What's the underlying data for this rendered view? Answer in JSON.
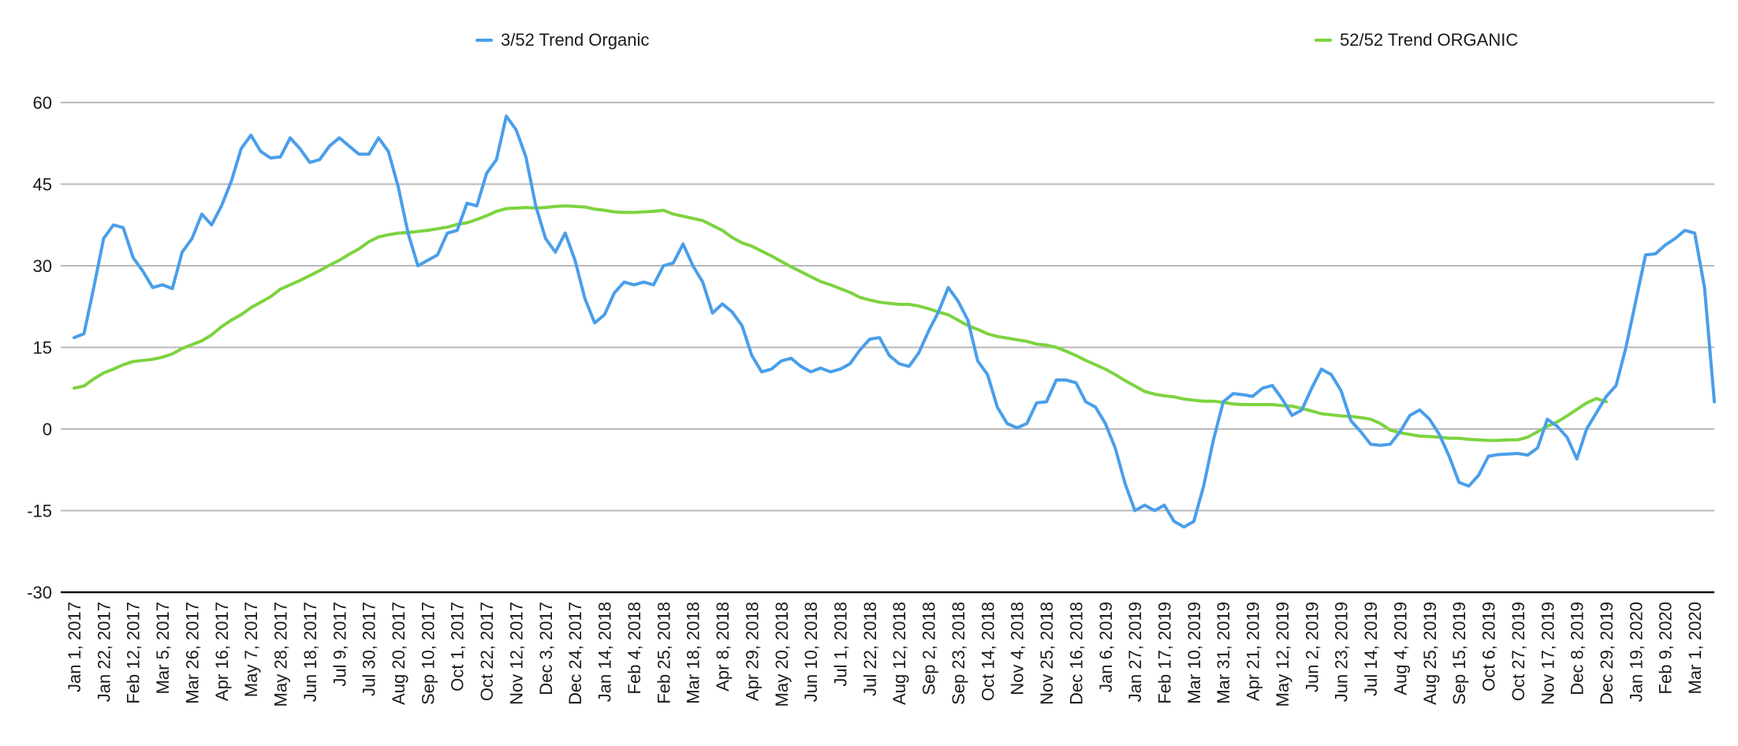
{
  "chart_data": {
    "type": "line",
    "title": "",
    "xlabel": "",
    "ylabel": "",
    "ylim": [
      -30,
      60
    ],
    "yticks": [
      60,
      45,
      30,
      15,
      0,
      -15,
      -30
    ],
    "grid": true,
    "legend_position": "top",
    "x_tick_labels": [
      "Jan 1, 2017",
      "Jan 22, 2017",
      "Feb 12, 2017",
      "Mar 5, 2017",
      "Mar 26, 2017",
      "Apr 16, 2017",
      "May 7, 2017",
      "May 28, 2017",
      "Jun 18, 2017",
      "Jul 9, 2017",
      "Jul 30, 2017",
      "Aug 20, 2017",
      "Sep 10, 2017",
      "Oct 1, 2017",
      "Oct 22, 2017",
      "Nov 12, 2017",
      "Dec 3, 2017",
      "Dec 24, 2017",
      "Jan 14, 2018",
      "Feb 4, 2018",
      "Feb 25, 2018",
      "Mar 18, 2018",
      "Apr 8, 2018",
      "Apr 29, 2018",
      "May 20, 2018",
      "Jun 10, 2018",
      "Jul 1, 2018",
      "Jul 22, 2018",
      "Aug 12, 2018",
      "Sep 2, 2018",
      "Sep 23, 2018",
      "Oct 14, 2018",
      "Nov 4, 2018",
      "Nov 25, 2018",
      "Dec 16, 2018",
      "Jan 6, 2019",
      "Jan 27, 2019",
      "Feb 17, 2019",
      "Mar 10, 2019",
      "Mar 31, 2019",
      "Apr 21, 2019",
      "May 12, 2019",
      "Jun 2, 2019",
      "Jun 23, 2019",
      "Jul 14, 2019",
      "Aug 4, 2019",
      "Aug 25, 2019",
      "Sep 15, 2019",
      "Oct 6, 2019",
      "Oct 27, 2019",
      "Nov 17, 2019",
      "Dec 8, 2019",
      "Dec 29, 2019",
      "Jan 19, 2020",
      "Feb 9, 2020",
      "Mar 1, 2020"
    ],
    "series": [
      {
        "name": "3/52 Trend Organic",
        "color": "#4a9eea",
        "values": [
          16.8,
          17.5,
          26.0,
          35.0,
          37.5,
          37.0,
          31.5,
          29.0,
          26.0,
          26.5,
          25.8,
          32.5,
          35.0,
          39.5,
          37.5,
          41.0,
          45.5,
          51.5,
          54.0,
          51.0,
          49.8,
          50.0,
          53.5,
          51.5,
          49.0,
          49.5,
          52.0,
          53.5,
          52.0,
          50.5,
          50.5,
          53.5,
          51.0,
          44.5,
          36.0,
          30.0,
          31.0,
          32.0,
          36.0,
          36.5,
          41.5,
          41.0,
          47.0,
          49.5,
          57.5,
          55.0,
          50.0,
          41.0,
          35.0,
          32.5,
          36.0,
          31.0,
          24.0,
          19.5,
          21.0,
          25.0,
          27.0,
          26.5,
          27.0,
          26.5,
          30.0,
          30.5,
          34.0,
          30.0,
          27.0,
          21.3,
          23.0,
          21.5,
          19.0,
          13.5,
          10.5,
          11.0,
          12.5,
          13.0,
          11.5,
          10.5,
          11.2,
          10.5,
          11.0,
          12.0,
          14.5,
          16.5,
          16.8,
          13.5,
          12.0,
          11.5,
          14.0,
          18.0,
          21.5,
          26.0,
          23.5,
          20.0,
          12.5,
          10.0,
          4.0,
          1.0,
          0.2,
          1.0,
          4.8,
          5.0,
          9.0,
          9.0,
          8.5,
          5.0,
          4.0,
          1.0,
          -3.5,
          -10.0,
          -15.0,
          -14.0,
          -15.0,
          -14.0,
          -17.0,
          -18.0,
          -17.0,
          -10.5,
          -2.0,
          5.0,
          6.5,
          6.3,
          6.0,
          7.5,
          8.0,
          5.5,
          2.5,
          3.5,
          7.5,
          11.0,
          10.0,
          7.0,
          1.5,
          -0.5,
          -2.8,
          -3.0,
          -2.8,
          -0.5,
          2.5,
          3.5,
          1.8,
          -1.0,
          -5.0,
          -9.8,
          -10.5,
          -8.5,
          -5.0,
          -4.7,
          -4.6,
          -4.5,
          -4.8,
          -3.5,
          1.8,
          0.5,
          -1.5,
          -5.5,
          0.0,
          3.0,
          6.0,
          8.0,
          15.0,
          23.5,
          32.0,
          32.2,
          33.8,
          35.0,
          36.5,
          36.0,
          26.0,
          5.0
        ]
      },
      {
        "name": "52/52 Trend ORGANIC",
        "color": "#7dd340",
        "values": [
          7.5,
          7.9,
          9.2,
          10.3,
          11.0,
          11.8,
          12.4,
          12.6,
          12.8,
          13.2,
          13.8,
          14.8,
          15.5,
          16.2,
          17.3,
          18.8,
          20.0,
          21.0,
          22.3,
          23.3,
          24.3,
          25.7,
          26.5,
          27.3,
          28.2,
          29.1,
          30.1,
          31.0,
          32.1,
          33.1,
          34.4,
          35.3,
          35.7,
          36.0,
          36.1,
          36.3,
          36.5,
          36.8,
          37.1,
          37.6,
          37.9,
          38.5,
          39.2,
          40.0,
          40.5,
          40.6,
          40.7,
          40.6,
          40.7,
          40.9,
          41.0,
          40.9,
          40.8,
          40.4,
          40.2,
          39.9,
          39.8,
          39.8,
          39.9,
          40.0,
          40.2,
          39.5,
          39.1,
          38.7,
          38.3,
          37.4,
          36.5,
          35.2,
          34.2,
          33.6,
          32.7,
          31.8,
          30.8,
          29.8,
          28.9,
          28.0,
          27.1,
          26.5,
          25.8,
          25.1,
          24.2,
          23.7,
          23.3,
          23.1,
          22.9,
          22.9,
          22.6,
          22.1,
          21.5,
          21.0,
          20.0,
          19.0,
          18.3,
          17.5,
          17.0,
          16.7,
          16.4,
          16.1,
          15.6,
          15.4,
          15.0,
          14.3,
          13.5,
          12.6,
          11.8,
          11.0,
          10.0,
          8.9,
          7.9,
          6.9,
          6.4,
          6.1,
          5.9,
          5.5,
          5.3,
          5.1,
          5.1,
          4.9,
          4.6,
          4.5,
          4.5,
          4.5,
          4.5,
          4.3,
          4.2,
          3.8,
          3.3,
          2.8,
          2.6,
          2.4,
          2.3,
          2.1,
          1.8,
          1.0,
          -0.2,
          -0.7,
          -1.0,
          -1.3,
          -1.4,
          -1.5,
          -1.7,
          -1.7,
          -1.9,
          -2.0,
          -2.1,
          -2.1,
          -2.0,
          -2.0,
          -1.5,
          -0.5,
          0.5,
          1.3,
          2.4,
          3.6,
          4.8,
          5.6,
          5.0
        ]
      }
    ]
  }
}
